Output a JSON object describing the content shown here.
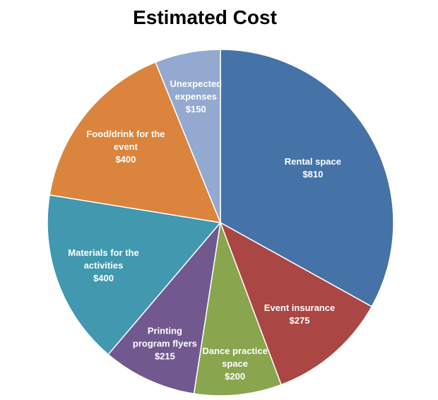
{
  "chart_data": {
    "type": "pie",
    "title": "Estimated Cost",
    "slices": [
      {
        "label": [
          "Rental space",
          "$810"
        ],
        "value": 810,
        "color": "#4572A7"
      },
      {
        "label": [
          "Event insurance",
          "$275"
        ],
        "value": 275,
        "color": "#AA4643"
      },
      {
        "label": [
          "Dance practice",
          "space",
          "$200"
        ],
        "value": 200,
        "color": "#89A54E"
      },
      {
        "label": [
          "Printing",
          "program flyers",
          "$215"
        ],
        "value": 215,
        "color": "#71588F"
      },
      {
        "label": [
          "Materials for the",
          "activities",
          "$400"
        ],
        "value": 400,
        "color": "#4198AF"
      },
      {
        "label": [
          "Food/drink for the",
          "event",
          "$400"
        ],
        "value": 400,
        "color": "#DB843D"
      },
      {
        "label": [
          "Unexpected",
          "expenses",
          "$150"
        ],
        "value": 150,
        "color": "#93A9CF"
      }
    ]
  }
}
